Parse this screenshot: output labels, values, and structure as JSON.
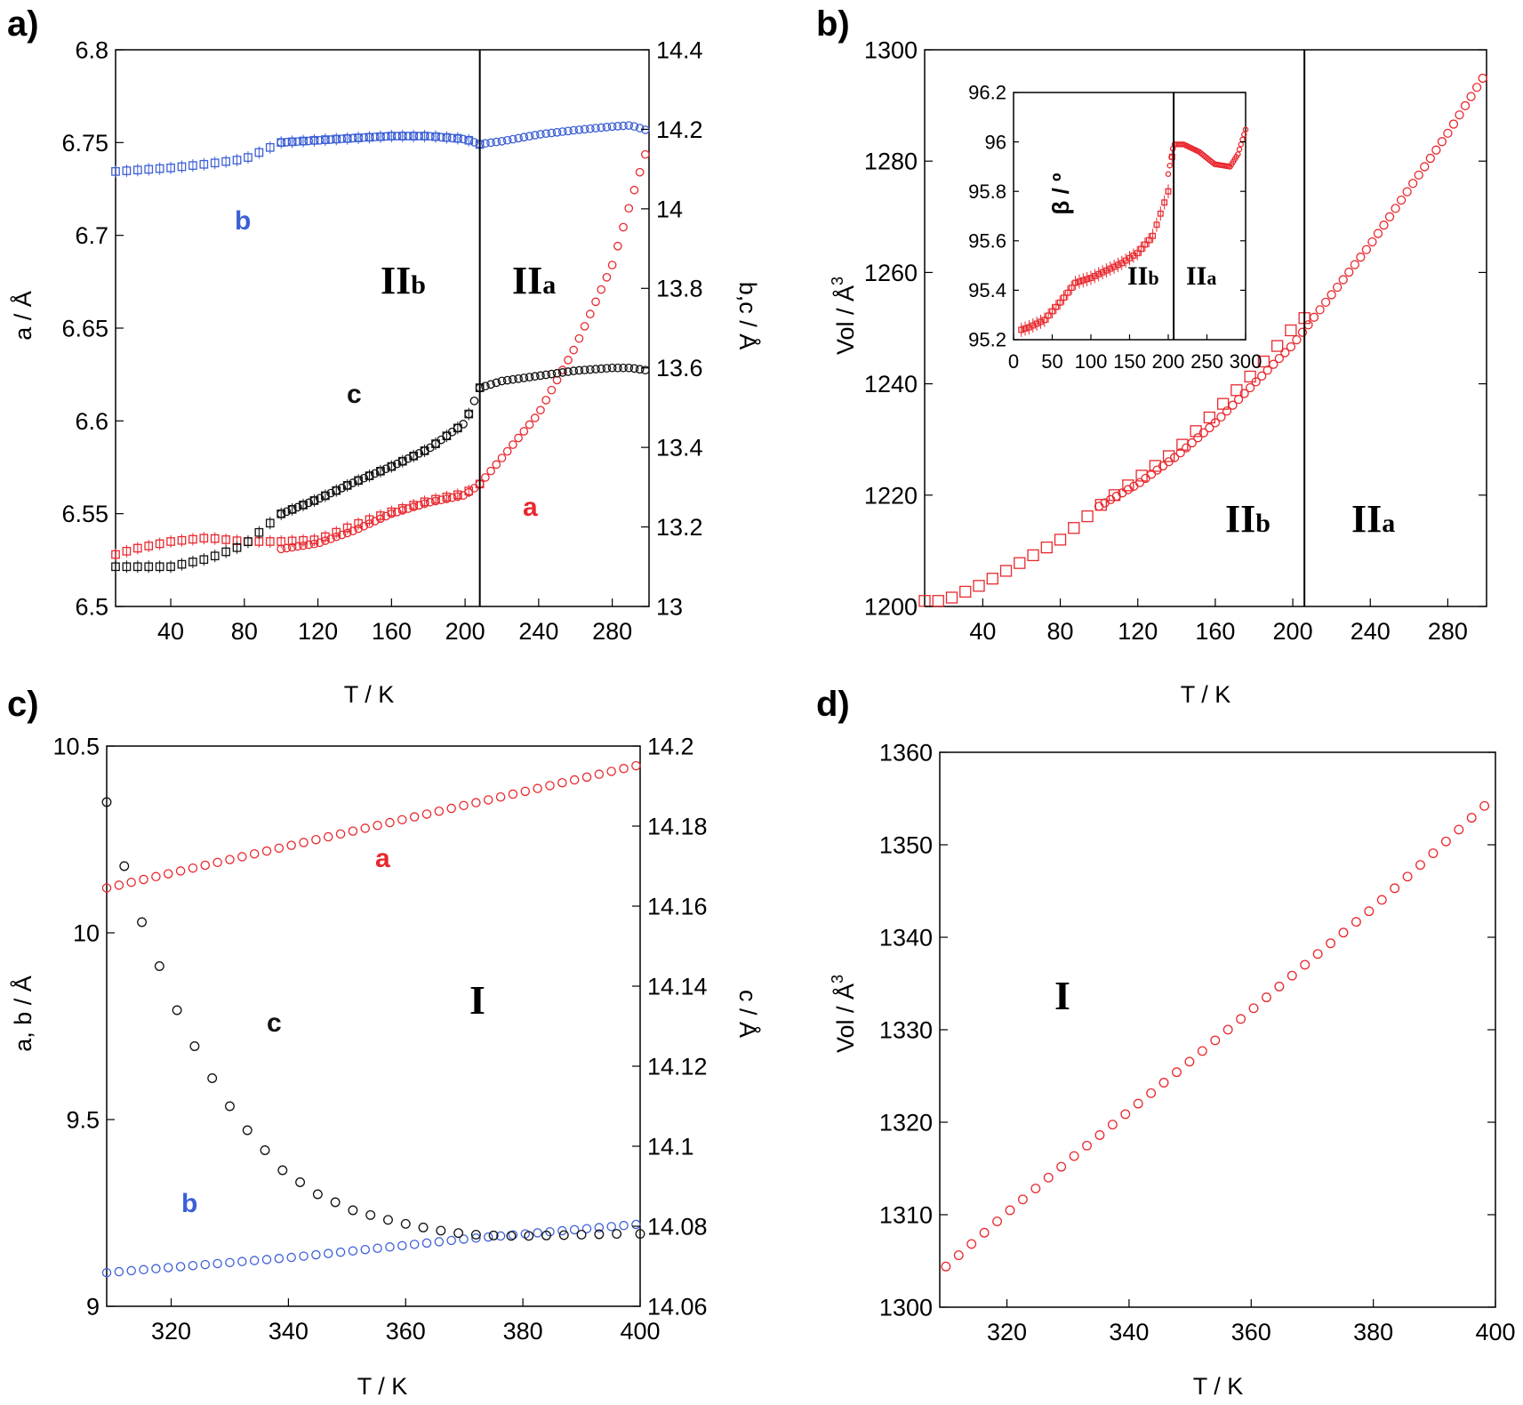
{
  "panels": {
    "a": {
      "label": "a)",
      "xlabel": "T / K",
      "ylabel_left": "a / Å",
      "ylabel_right": "b,c / Å",
      "xlim": [
        10,
        300
      ],
      "xticks": [
        "40",
        "80",
        "120",
        "160",
        "200",
        "240",
        "280"
      ],
      "ylim_left": [
        6.5,
        6.8
      ],
      "yticks_left": [
        "6.5",
        "6.55",
        "6.6",
        "6.65",
        "6.7",
        "6.75",
        "6.8"
      ],
      "ylim_right": [
        13,
        14.4
      ],
      "yticks_right": [
        "13",
        "13.2",
        "13.4",
        "13.6",
        "13.8",
        "14",
        "14.2",
        "14.4"
      ],
      "transition_T": 208,
      "regions": {
        "left": "II",
        "left_sub": "b",
        "right": "II",
        "right_sub": "a"
      },
      "series_labels": {
        "a": "a",
        "b": "b",
        "c": "c"
      }
    },
    "b": {
      "label": "b)",
      "xlabel": "T / K",
      "ylabel": "Vol / Å",
      "ylabel_sup": "3",
      "xlim": [
        10,
        300
      ],
      "xticks": [
        "40",
        "80",
        "120",
        "160",
        "200",
        "240",
        "280"
      ],
      "ylim": [
        1200,
        1300
      ],
      "yticks": [
        "1200",
        "1220",
        "1240",
        "1260",
        "1280",
        "1300"
      ],
      "transition_T": 206,
      "regions": {
        "left": "II",
        "left_sub": "b",
        "right": "II",
        "right_sub": "a"
      },
      "inset": {
        "ylabel": "β / º",
        "xlim": [
          0,
          300
        ],
        "xticks": [
          "0",
          "50",
          "100",
          "150",
          "200",
          "250",
          "300"
        ],
        "ylim": [
          95.2,
          96.2
        ],
        "yticks": [
          "95.2",
          "95.4",
          "95.6",
          "95.8",
          "96",
          "96.2"
        ],
        "transition_T": 207,
        "regions": {
          "left": "II",
          "left_sub": "b",
          "right": "II",
          "right_sub": "a"
        }
      }
    },
    "c": {
      "label": "c)",
      "xlabel": "T / K",
      "ylabel_left": "a, b / Å",
      "ylabel_right": "c / Å",
      "xlim": [
        309,
        400
      ],
      "xticks": [
        "320",
        "340",
        "360",
        "380",
        "400"
      ],
      "ylim_left": [
        9,
        10.5
      ],
      "yticks_left": [
        "9",
        "9.5",
        "10",
        "10.5"
      ],
      "ylim_right": [
        14.06,
        14.2
      ],
      "yticks_right": [
        "14.06",
        "14.08",
        "14.1",
        "14.12",
        "14.14",
        "14.16",
        "14.18",
        "14.2"
      ],
      "region": "I",
      "series_labels": {
        "a": "a",
        "b": "b",
        "c": "c"
      }
    },
    "d": {
      "label": "d)",
      "xlabel": "T / K",
      "ylabel": "Vol / Å",
      "ylabel_sup": "3",
      "xlim": [
        309,
        400
      ],
      "xticks": [
        "320",
        "340",
        "360",
        "380",
        "400"
      ],
      "ylim": [
        1300,
        1360
      ],
      "yticks": [
        "1300",
        "1310",
        "1320",
        "1330",
        "1340",
        "1350",
        "1360"
      ],
      "region": "I"
    }
  },
  "colors": {
    "a": "#e8282e",
    "b": "#3c5fd6",
    "c": "#111111",
    "frame": "#000000"
  },
  "chart_data": [
    {
      "panel": "a",
      "type": "scatter",
      "x_axis": "T / K",
      "series": [
        {
          "name": "a",
          "axis": "left",
          "marker": "circle",
          "x": [
            100,
            120,
            140,
            160,
            180,
            200,
            208,
            220,
            240,
            260,
            280,
            290,
            300
          ],
          "y": [
            6.531,
            6.534,
            6.541,
            6.55,
            6.556,
            6.56,
            6.566,
            6.58,
            6.604,
            6.64,
            6.684,
            6.718,
            6.75
          ]
        },
        {
          "name": "a",
          "axis": "left",
          "marker": "square",
          "x": [
            10,
            20,
            40,
            60,
            80,
            100,
            120,
            140,
            160,
            180,
            200,
            208
          ],
          "y": [
            6.528,
            6.531,
            6.535,
            6.537,
            6.535,
            6.535,
            6.536,
            6.544,
            6.551,
            6.557,
            6.561,
            6.566
          ]
        },
        {
          "name": "b",
          "axis": "right",
          "marker": "circle",
          "x": [
            100,
            120,
            140,
            160,
            180,
            200,
            208,
            220,
            240,
            260,
            280,
            290,
            300
          ],
          "y": [
            14.167,
            14.172,
            14.178,
            14.183,
            14.183,
            14.175,
            14.163,
            14.17,
            14.187,
            14.198,
            14.207,
            14.21,
            14.196
          ]
        },
        {
          "name": "b",
          "axis": "right",
          "marker": "square",
          "x": [
            10,
            20,
            40,
            60,
            80,
            100,
            120,
            140,
            160,
            180,
            200,
            208
          ],
          "y": [
            14.094,
            14.097,
            14.103,
            14.113,
            14.125,
            14.167,
            14.173,
            14.178,
            14.183,
            14.183,
            14.176,
            14.162
          ]
        },
        {
          "name": "c",
          "axis": "right",
          "marker": "circle",
          "x": [
            100,
            120,
            140,
            160,
            180,
            200,
            208,
            220,
            240,
            260,
            280,
            290,
            300
          ],
          "y": [
            13.233,
            13.27,
            13.313,
            13.352,
            13.396,
            13.462,
            13.55,
            13.567,
            13.58,
            13.593,
            13.6,
            13.6,
            13.593
          ]
        },
        {
          "name": "c",
          "axis": "right",
          "marker": "square",
          "x": [
            10,
            20,
            40,
            60,
            80,
            100,
            120,
            140,
            160,
            180,
            200,
            208
          ],
          "y": [
            13.1,
            13.1,
            13.1,
            13.12,
            13.155,
            13.233,
            13.27,
            13.313,
            13.352,
            13.396,
            13.462,
            13.55
          ]
        }
      ]
    },
    {
      "panel": "b",
      "type": "scatter",
      "x_axis": "T / K",
      "series": [
        {
          "marker": "circle",
          "x": [
            100,
            120,
            140,
            160,
            180,
            200,
            220,
            240,
            260,
            280,
            300
          ],
          "y": [
            1218,
            1222,
            1227,
            1233,
            1240,
            1247,
            1256,
            1265,
            1275,
            1285,
            1296
          ]
        },
        {
          "marker": "square",
          "x": [
            10,
            20,
            40,
            60,
            80,
            100,
            120,
            140,
            160,
            180,
            200,
            210
          ],
          "y": [
            1201,
            1201,
            1204,
            1208,
            1212,
            1218,
            1223,
            1228,
            1235,
            1242,
            1250,
            1253
          ]
        }
      ],
      "inset": {
        "type": "scatter",
        "series": [
          {
            "marker": "circle",
            "x": [
              200,
              207,
              220,
              240,
              260,
              280,
              290,
              300
            ],
            "y": [
              95.87,
              95.99,
              95.99,
              95.96,
              95.91,
              95.9,
              95.95,
              96.05
            ]
          },
          {
            "marker": "square",
            "x": [
              10,
              20,
              40,
              60,
              80,
              100,
              120,
              140,
              160,
              180,
              200,
              205
            ],
            "y": [
              95.24,
              95.25,
              95.28,
              95.35,
              95.43,
              95.45,
              95.48,
              95.51,
              95.55,
              95.62,
              95.8,
              95.94
            ]
          }
        ]
      }
    },
    {
      "panel": "c",
      "type": "scatter",
      "x_axis": "T / K",
      "series": [
        {
          "name": "a",
          "axis": "left",
          "marker": "circle",
          "x": [
            309,
            400
          ],
          "y": [
            10.12,
            10.45
          ]
        },
        {
          "name": "b",
          "axis": "left",
          "marker": "circle",
          "x": [
            309,
            340,
            370,
            400
          ],
          "y": [
            9.09,
            9.13,
            9.18,
            9.22
          ]
        },
        {
          "name": "c",
          "axis": "right",
          "marker": "circle",
          "x": [
            309,
            312,
            315,
            318,
            321,
            324,
            327,
            330,
            333,
            336,
            339,
            342,
            345,
            348,
            351,
            354,
            357,
            360,
            363,
            366,
            369,
            372,
            375,
            378,
            381,
            384,
            387,
            390,
            393,
            396,
            400
          ],
          "y": [
            14.186,
            14.17,
            14.156,
            14.145,
            14.134,
            14.125,
            14.117,
            14.11,
            14.104,
            14.099,
            14.094,
            14.091,
            14.088,
            14.086,
            14.084,
            14.0828,
            14.0816,
            14.0806,
            14.0797,
            14.0789,
            14.0783,
            14.0779,
            14.0777,
            14.0776,
            14.0776,
            14.0777,
            14.0778,
            14.0779,
            14.078,
            14.0781,
            14.0781
          ]
        }
      ]
    },
    {
      "panel": "d",
      "type": "scatter",
      "x_axis": "T / K",
      "series": [
        {
          "marker": "circle",
          "x": [
            310,
            320,
            330,
            340,
            350,
            360,
            370,
            380,
            390,
            400
          ],
          "y": [
            1304.4,
            1310.2,
            1315.8,
            1321.2,
            1326.6,
            1332.1,
            1337.7,
            1343.2,
            1349.2,
            1355.3
          ]
        }
      ]
    }
  ]
}
